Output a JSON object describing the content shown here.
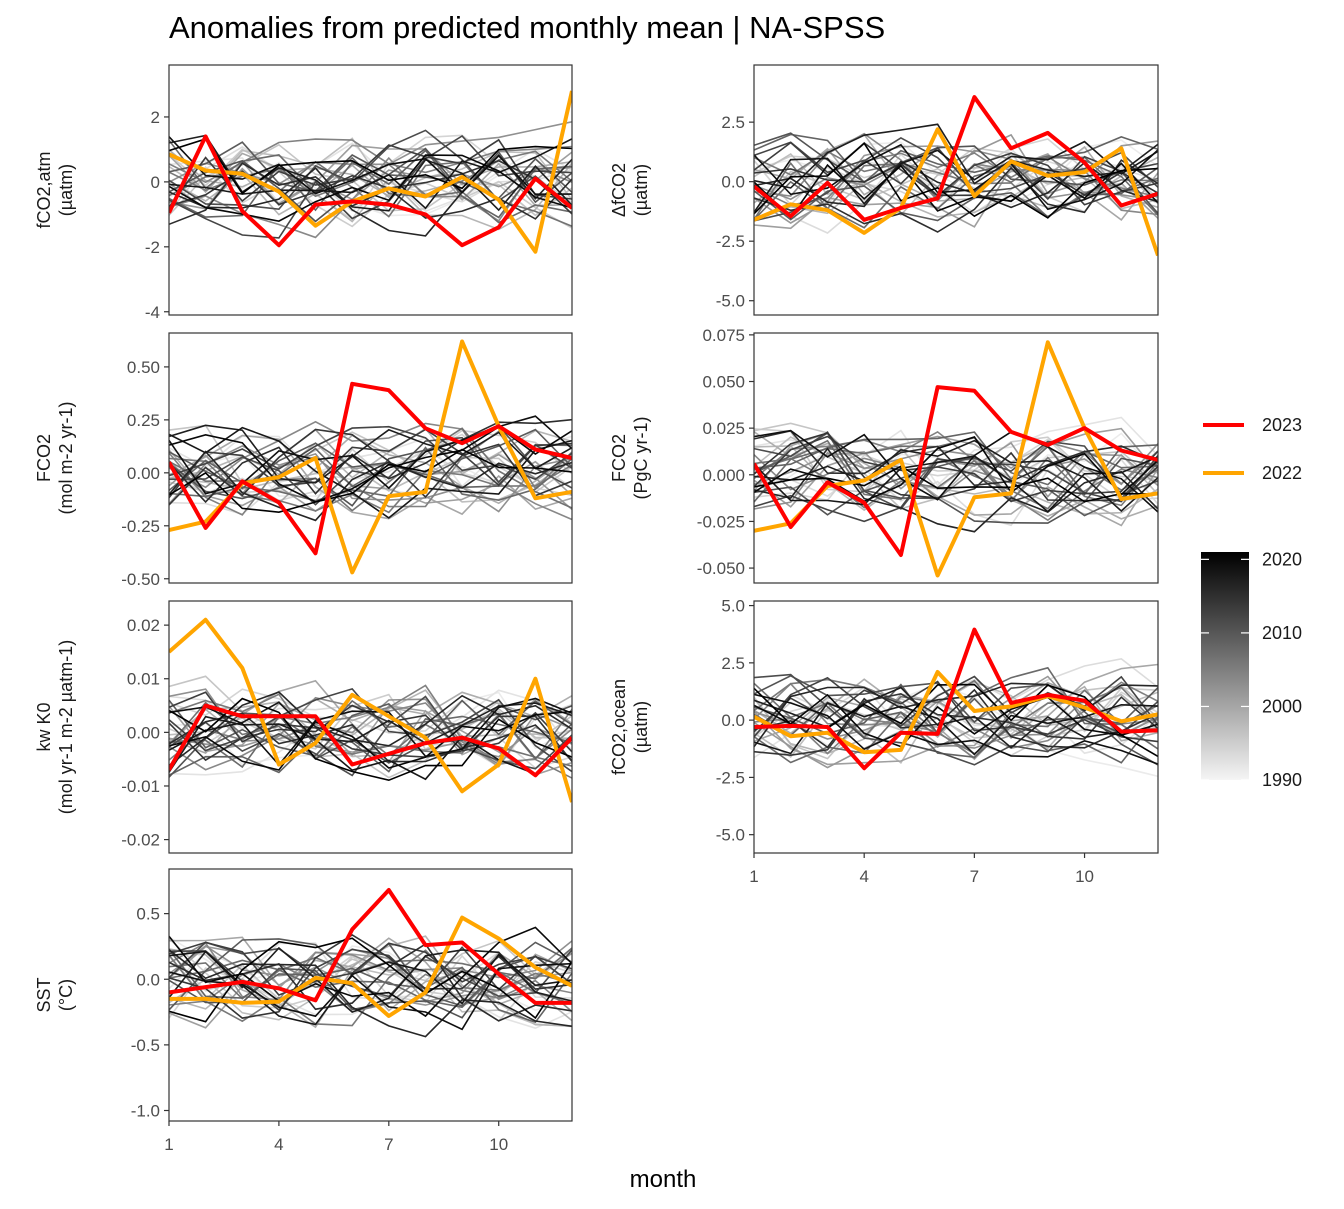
{
  "title": "Anomalies from predicted monthly mean | NA-SPSS",
  "x_axis_title": "month",
  "colors": {
    "highlight_2023": "#ff0000",
    "highlight_2022": "#ffa500",
    "background_gradient_low": "#f0f0f0",
    "background_gradient_high": "#000000"
  },
  "legend": {
    "highlight_items": [
      {
        "label": "2023",
        "color": "#ff0000"
      },
      {
        "label": "2022",
        "color": "#ffa500"
      }
    ],
    "colorbar_ticks": [
      "2020",
      "2010",
      "2000",
      "1990"
    ],
    "colorbar_tick_values": [
      2020,
      2010,
      2000,
      1990
    ],
    "colorbar_range": [
      1990,
      2021
    ]
  },
  "chart_data": [
    {
      "id": "fco2-atm",
      "type": "line",
      "ylabel_lines": [
        "fCO2,atm",
        "(µatm)"
      ],
      "x_ticks": [],
      "ylim": [
        -4.1,
        3.6
      ],
      "y_ticks": [
        {
          "v": 2,
          "label": "2"
        },
        {
          "v": 0,
          "label": "0"
        },
        {
          "v": -2,
          "label": "-2"
        },
        {
          "v": -4,
          "label": "-4"
        }
      ],
      "series": [
        {
          "name": "2023",
          "x": [
            1,
            2,
            3,
            4,
            5,
            6,
            7,
            8,
            9,
            10,
            11,
            12
          ],
          "values": [
            -0.95,
            1.4,
            -0.9,
            -1.95,
            -0.7,
            -0.6,
            -0.7,
            -1.0,
            -1.95,
            -1.4,
            0.1,
            -0.8
          ]
        },
        {
          "name": "2022",
          "x": [
            1,
            2,
            3,
            4,
            5,
            6,
            7,
            8,
            9,
            10,
            11,
            12
          ],
          "values": [
            0.85,
            0.35,
            0.25,
            -0.3,
            -1.35,
            -0.6,
            -0.2,
            -0.45,
            0.15,
            -0.55,
            -2.15,
            2.8
          ]
        }
      ]
    },
    {
      "id": "delta-fco2",
      "type": "line",
      "ylabel_lines": [
        "ΔfCO2",
        "(µatm)"
      ],
      "x_ticks": [],
      "ylim": [
        -5.6,
        4.9
      ],
      "y_ticks": [
        {
          "v": 2.5,
          "label": "2.5"
        },
        {
          "v": 0,
          "label": "0.0"
        },
        {
          "v": -2.5,
          "label": "-2.5"
        },
        {
          "v": -5,
          "label": "-5.0"
        }
      ],
      "series": [
        {
          "name": "2023",
          "x": [
            1,
            2,
            3,
            4,
            5,
            6,
            7,
            8,
            9,
            10,
            11,
            12
          ],
          "values": [
            -0.2,
            -1.45,
            -0.05,
            -1.6,
            -1.1,
            -0.7,
            3.55,
            1.4,
            2.05,
            0.8,
            -1.0,
            -0.5
          ]
        },
        {
          "name": "2022",
          "x": [
            1,
            2,
            3,
            4,
            5,
            6,
            7,
            8,
            9,
            10,
            11,
            12
          ],
          "values": [
            -1.6,
            -0.95,
            -1.2,
            -2.15,
            -1.1,
            2.2,
            -0.6,
            0.85,
            0.25,
            0.4,
            1.4,
            -3.1
          ]
        }
      ]
    },
    {
      "id": "fco2-flux-area",
      "type": "line",
      "ylabel_lines": [
        "FCO2",
        "(mol m-2 yr-1)"
      ],
      "x_ticks": [],
      "ylim": [
        -0.52,
        0.66
      ],
      "y_ticks": [
        {
          "v": 0.5,
          "label": "0.50"
        },
        {
          "v": 0.25,
          "label": "0.25"
        },
        {
          "v": 0,
          "label": "0.00"
        },
        {
          "v": -0.25,
          "label": "-0.25"
        },
        {
          "v": -0.5,
          "label": "-0.50"
        }
      ],
      "series": [
        {
          "name": "2023",
          "x": [
            1,
            2,
            3,
            4,
            5,
            6,
            7,
            8,
            9,
            10,
            11,
            12
          ],
          "values": [
            0.05,
            -0.26,
            -0.04,
            -0.14,
            -0.38,
            0.42,
            0.39,
            0.21,
            0.14,
            0.22,
            0.11,
            0.07
          ]
        },
        {
          "name": "2022",
          "x": [
            1,
            2,
            3,
            4,
            5,
            6,
            7,
            8,
            9,
            10,
            11,
            12
          ],
          "values": [
            -0.27,
            -0.23,
            -0.05,
            -0.02,
            0.07,
            -0.47,
            -0.11,
            -0.09,
            0.62,
            0.22,
            -0.12,
            -0.09
          ]
        }
      ]
    },
    {
      "id": "fco2-flux-total",
      "type": "line",
      "ylabel_lines": [
        "FCO2",
        "(PgC yr-1)"
      ],
      "x_ticks": [],
      "ylim": [
        -0.058,
        0.076
      ],
      "y_ticks": [
        {
          "v": 0.075,
          "label": "0.075"
        },
        {
          "v": 0.05,
          "label": "0.050"
        },
        {
          "v": 0.025,
          "label": "0.025"
        },
        {
          "v": 0,
          "label": "0.000"
        },
        {
          "v": -0.025,
          "label": "-0.025"
        },
        {
          "v": -0.05,
          "label": "-0.050"
        }
      ],
      "series": [
        {
          "name": "2023",
          "x": [
            1,
            2,
            3,
            4,
            5,
            6,
            7,
            8,
            9,
            10,
            11,
            12
          ],
          "values": [
            0.006,
            -0.028,
            -0.004,
            -0.015,
            -0.043,
            0.047,
            0.045,
            0.023,
            0.016,
            0.025,
            0.013,
            0.008
          ]
        },
        {
          "name": "2022",
          "x": [
            1,
            2,
            3,
            4,
            5,
            6,
            7,
            8,
            9,
            10,
            11,
            12
          ],
          "values": [
            -0.03,
            -0.026,
            -0.006,
            -0.003,
            0.008,
            -0.054,
            -0.012,
            -0.01,
            0.071,
            0.025,
            -0.013,
            -0.01
          ]
        }
      ]
    },
    {
      "id": "kw-k0",
      "type": "line",
      "ylabel_lines": [
        "kw K0",
        "(mol yr-1 m-2 µatm-1)"
      ],
      "x_ticks": [],
      "ylim": [
        -0.0225,
        0.0245
      ],
      "y_ticks": [
        {
          "v": 0.02,
          "label": "0.02"
        },
        {
          "v": 0.01,
          "label": "0.01"
        },
        {
          "v": 0,
          "label": "0.00"
        },
        {
          "v": -0.01,
          "label": "-0.01"
        },
        {
          "v": -0.02,
          "label": "-0.02"
        }
      ],
      "series": [
        {
          "name": "2023",
          "x": [
            1,
            2,
            3,
            4,
            5,
            6,
            7,
            8,
            9,
            10,
            11,
            12
          ],
          "values": [
            -0.007,
            0.005,
            0.003,
            0.003,
            0.003,
            -0.006,
            -0.004,
            -0.002,
            -0.001,
            -0.003,
            -0.008,
            -0.001
          ]
        },
        {
          "name": "2022",
          "x": [
            1,
            2,
            3,
            4,
            5,
            6,
            7,
            8,
            9,
            10,
            11,
            12
          ],
          "values": [
            0.015,
            0.021,
            0.012,
            -0.006,
            -0.002,
            0.007,
            0.003,
            -0.001,
            -0.011,
            -0.006,
            0.01,
            -0.013
          ]
        }
      ]
    },
    {
      "id": "fco2-ocean",
      "type": "line",
      "ylabel_lines": [
        "fCO2,ocean",
        "(µatm)"
      ],
      "x_ticks": [
        {
          "v": 1,
          "label": "1"
        },
        {
          "v": 4,
          "label": "4"
        },
        {
          "v": 7,
          "label": "7"
        },
        {
          "v": 10,
          "label": "10"
        }
      ],
      "ylim": [
        -5.8,
        5.2
      ],
      "y_ticks": [
        {
          "v": 5,
          "label": "5.0"
        },
        {
          "v": 2.5,
          "label": "2.5"
        },
        {
          "v": 0,
          "label": "0.0"
        },
        {
          "v": -2.5,
          "label": "-2.5"
        },
        {
          "v": -5,
          "label": "-5.0"
        }
      ],
      "series": [
        {
          "name": "2023",
          "x": [
            1,
            2,
            3,
            4,
            5,
            6,
            7,
            8,
            9,
            10,
            11,
            12
          ],
          "values": [
            -0.3,
            -0.25,
            -0.3,
            -2.1,
            -0.55,
            -0.6,
            3.95,
            0.75,
            1.1,
            0.85,
            -0.5,
            -0.45
          ]
        },
        {
          "name": "2022",
          "x": [
            1,
            2,
            3,
            4,
            5,
            6,
            7,
            8,
            9,
            10,
            11,
            12
          ],
          "values": [
            0.15,
            -0.7,
            -0.55,
            -1.4,
            -1.3,
            2.1,
            0.4,
            0.6,
            1.05,
            0.55,
            -0.05,
            0.25
          ]
        }
      ]
    },
    {
      "id": "sst",
      "type": "line",
      "ylabel_lines": [
        "SST",
        "(°C)"
      ],
      "x_ticks": [
        {
          "v": 1,
          "label": "1"
        },
        {
          "v": 4,
          "label": "4"
        },
        {
          "v": 7,
          "label": "7"
        },
        {
          "v": 10,
          "label": "10"
        }
      ],
      "ylim": [
        -1.08,
        0.84
      ],
      "y_ticks": [
        {
          "v": 0.5,
          "label": "0.5"
        },
        {
          "v": 0,
          "label": "0.0"
        },
        {
          "v": -0.5,
          "label": "-0.5"
        },
        {
          "v": -1,
          "label": "-1.0"
        }
      ],
      "series": [
        {
          "name": "2023",
          "x": [
            1,
            2,
            3,
            4,
            5,
            6,
            7,
            8,
            9,
            10,
            11,
            12
          ],
          "values": [
            -0.1,
            -0.06,
            -0.02,
            -0.07,
            -0.16,
            0.38,
            0.68,
            0.26,
            0.28,
            0.04,
            -0.18,
            -0.18
          ]
        },
        {
          "name": "2022",
          "x": [
            1,
            2,
            3,
            4,
            5,
            6,
            7,
            8,
            9,
            10,
            11,
            12
          ],
          "values": [
            -0.15,
            -0.15,
            -0.18,
            -0.17,
            0.01,
            -0.03,
            -0.28,
            -0.1,
            0.47,
            0.31,
            0.09,
            -0.05
          ]
        }
      ]
    }
  ]
}
